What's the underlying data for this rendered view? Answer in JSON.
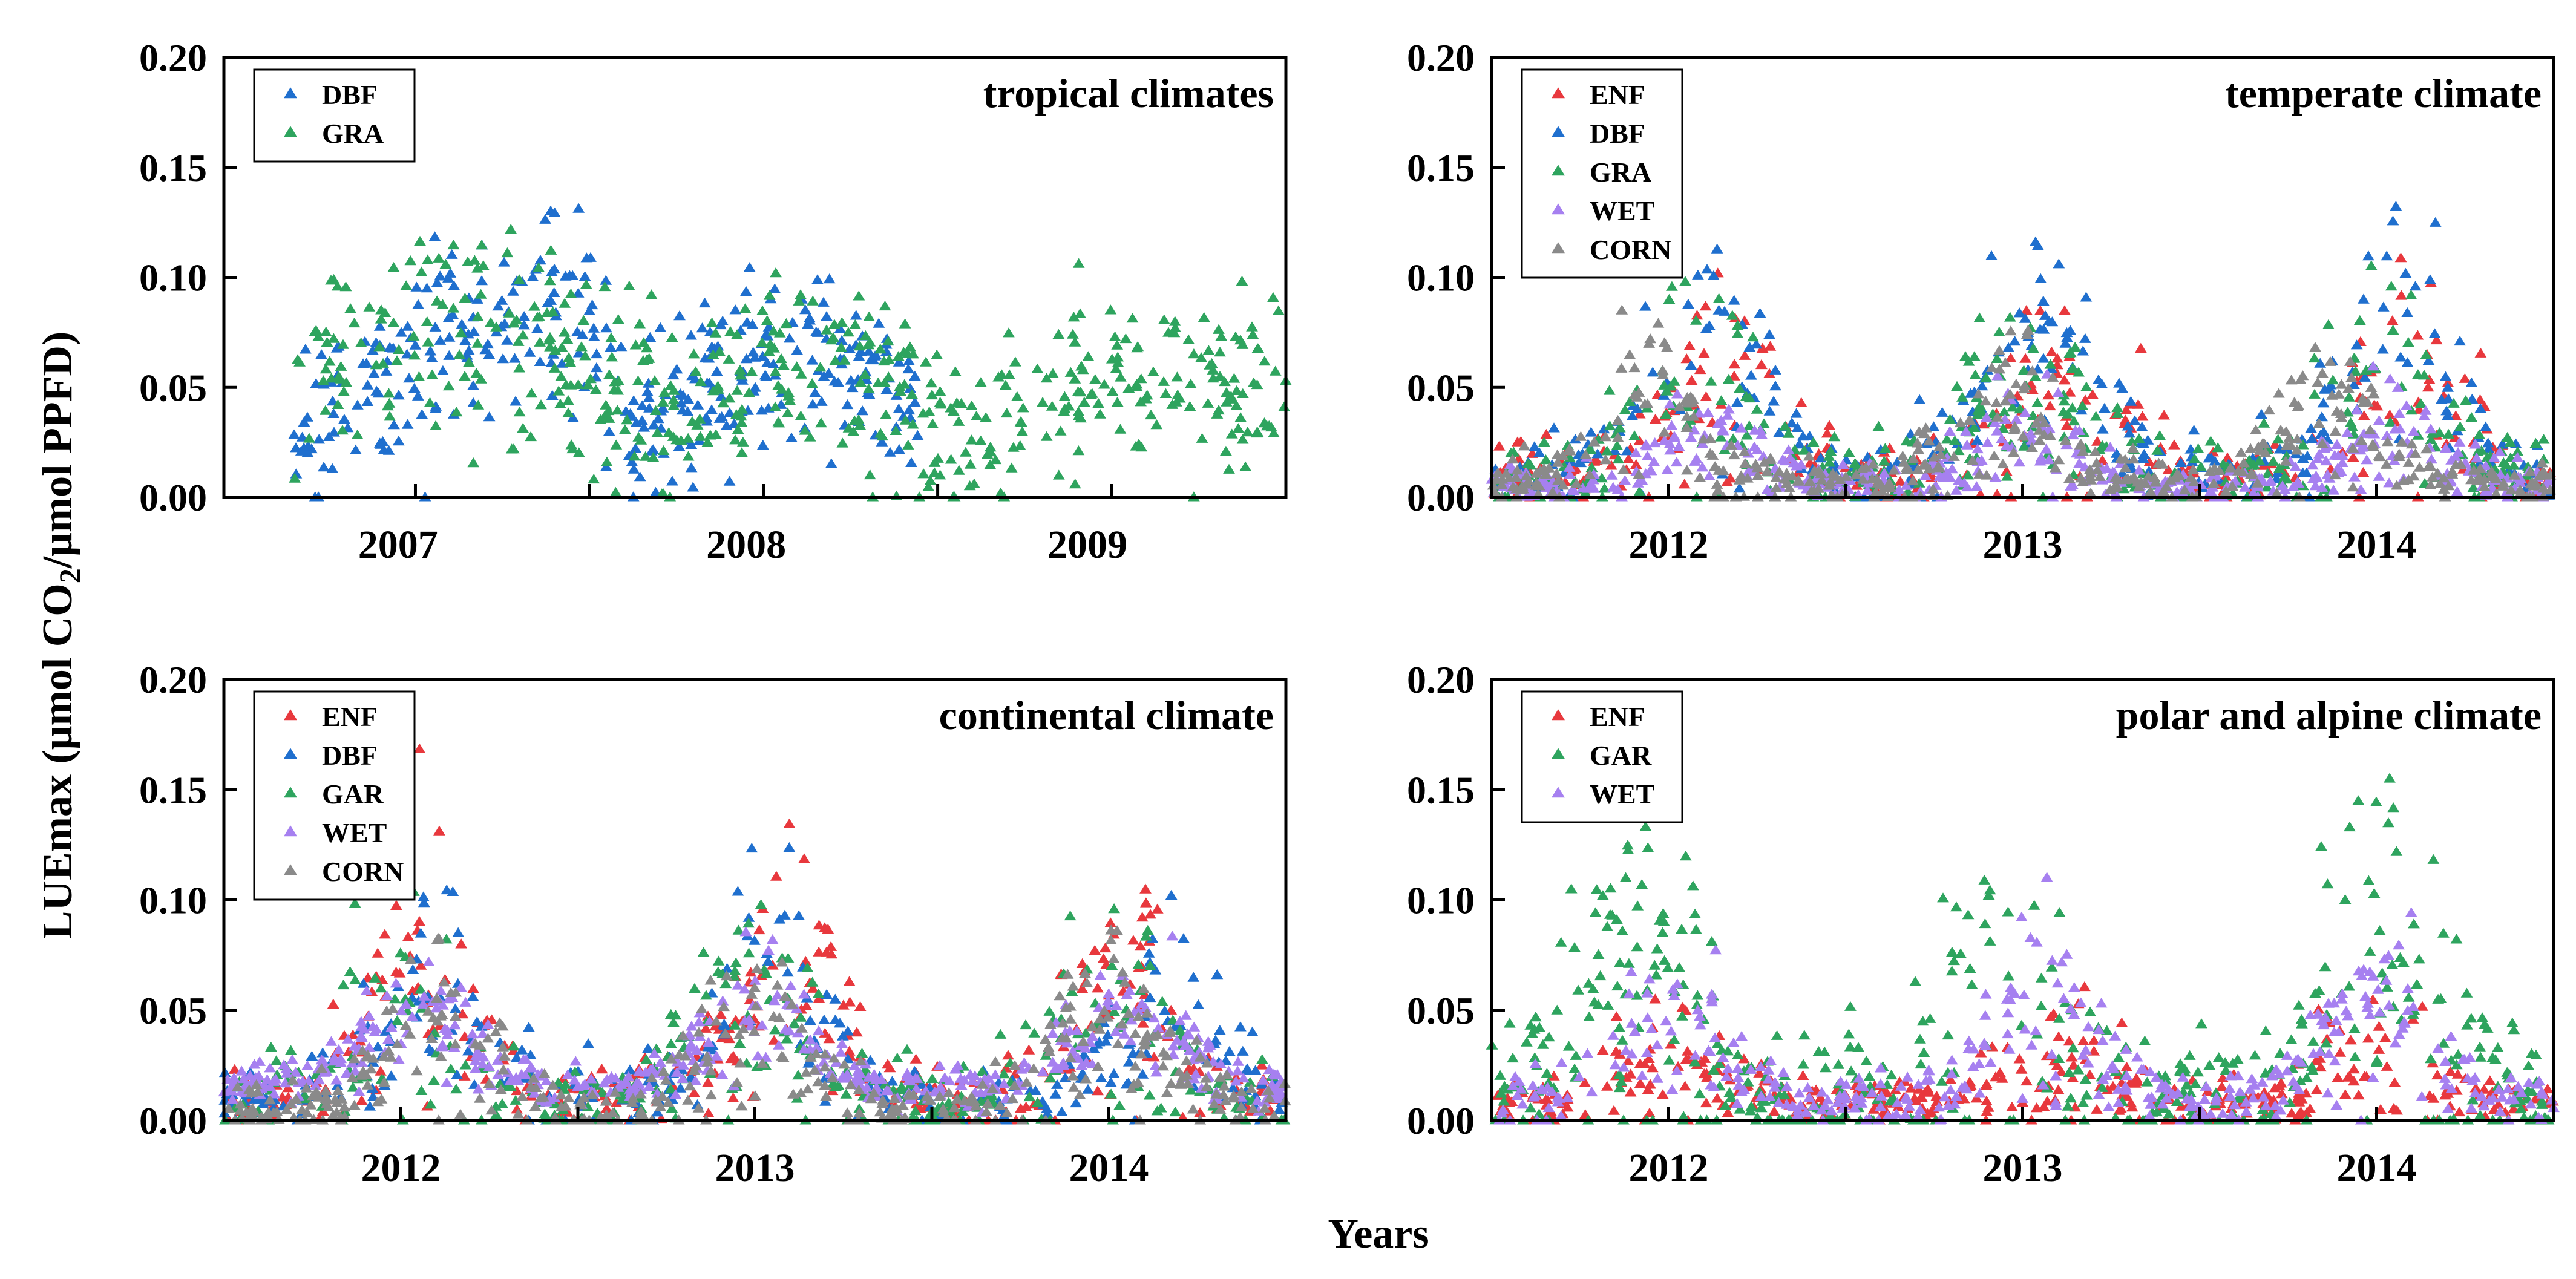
{
  "figure": {
    "ylabel_main": "LUEmax (μmol CO",
    "ylabel_sub": "2",
    "ylabel_tail": "/μmol PPFD)",
    "xlabel": "Years"
  },
  "colors": {
    "ENF": "#e8383d",
    "DBF": "#1f6fce",
    "GRA": "#2ea45e",
    "GAR": "#2ea45e",
    "WET": "#a680f0",
    "CORN": "#8a8a8a"
  },
  "chart_data": [
    {
      "type": "scatter",
      "title": "tropical climates",
      "marker": "triangle",
      "ylim": [
        0,
        0.2
      ],
      "yticks": [
        "0.00",
        "0.05",
        "0.10",
        "0.15",
        "0.20"
      ],
      "xlim": [
        2006.45,
        2009.5
      ],
      "xticks": [
        {
          "label": "2007",
          "x": 2006.95
        },
        {
          "label": "2008",
          "x": 2007.95
        },
        {
          "label": "2009",
          "x": 2008.93
        }
      ],
      "xtick_positions": [
        2007.0,
        2007.5,
        2008.0,
        2008.5,
        2009.0
      ],
      "legend": [
        "DBF",
        "GRA"
      ],
      "legend_position": "top-left",
      "series": [
        {
          "name": "DBF",
          "segments": [
            {
              "x0": 2006.65,
              "x1": 2007.6,
              "peak": 2007.3,
              "base": 0.02,
              "amp": 0.07,
              "spread": 0.022
            },
            {
              "x0": 2007.6,
              "x1": 2008.45,
              "peak": 2008.1,
              "base": 0.02,
              "amp": 0.045,
              "spread": 0.018
            }
          ],
          "n": 360
        },
        {
          "name": "GRA",
          "segments": [
            {
              "x0": 2006.65,
              "x1": 2007.7,
              "peak": 2007.1,
              "base": 0.03,
              "amp": 0.05,
              "spread": 0.025
            },
            {
              "x0": 2007.7,
              "x1": 2008.6,
              "peak": 2008.15,
              "base": 0.02,
              "amp": 0.04,
              "spread": 0.02
            },
            {
              "x0": 2008.6,
              "x1": 2009.5,
              "peak": 2009.2,
              "base": 0.02,
              "amp": 0.035,
              "spread": 0.02
            }
          ],
          "n": 520
        }
      ]
    },
    {
      "type": "scatter",
      "title": "temperate climate",
      "marker": "triangle",
      "ylim": [
        0,
        0.2
      ],
      "yticks": [
        "0.00",
        "0.05",
        "0.10",
        "0.15",
        "0.20"
      ],
      "xlim": [
        2011.5,
        2014.5
      ],
      "xticks": [
        {
          "label": "2012",
          "x": 2012.0
        },
        {
          "label": "2013",
          "x": 2013.0
        },
        {
          "label": "2014",
          "x": 2014.0
        }
      ],
      "xtick_positions": [
        2012.0,
        2012.5,
        2013.0,
        2013.5,
        2014.0
      ],
      "legend": [
        "ENF",
        "DBF",
        "GRA",
        "WET",
        "CORN"
      ],
      "legend_position": "top-left",
      "series": [
        {
          "name": "ENF",
          "peaks": [
            2012.15,
            2013.1,
            2014.1
          ],
          "base": 0.01,
          "amp": 0.045,
          "spread": 0.02,
          "n": 300
        },
        {
          "name": "DBF",
          "peaks": [
            2012.1,
            2013.05,
            2014.05
          ],
          "base": 0.01,
          "amp": 0.07,
          "spread": 0.02,
          "n": 320
        },
        {
          "name": "GRA",
          "peaks": [
            2012.05,
            2013.0,
            2014.0
          ],
          "base": 0.008,
          "amp": 0.05,
          "spread": 0.02,
          "n": 380
        },
        {
          "name": "WET",
          "peaks": [
            2012.1,
            2013.0,
            2014.05
          ],
          "base": 0.005,
          "amp": 0.025,
          "spread": 0.01,
          "n": 420
        },
        {
          "name": "CORN",
          "peaks": [
            2011.95,
            2012.95,
            2013.85
          ],
          "base": 0.006,
          "amp": 0.035,
          "spread": 0.012,
          "n": 420
        }
      ]
    },
    {
      "type": "scatter",
      "title": "continental climate",
      "marker": "triangle",
      "ylim": [
        0,
        0.2
      ],
      "yticks": [
        "0.00",
        "0.05",
        "0.10",
        "0.15",
        "0.20"
      ],
      "xlim": [
        2011.5,
        2014.5
      ],
      "xticks": [
        {
          "label": "2012",
          "x": 2012.0
        },
        {
          "label": "2013",
          "x": 2013.0
        },
        {
          "label": "2014",
          "x": 2014.0
        }
      ],
      "xtick_positions": [
        2012.0,
        2012.5,
        2013.0,
        2013.5,
        2014.0
      ],
      "legend": [
        "ENF",
        "DBF",
        "GAR",
        "WET",
        "CORN"
      ],
      "legend_position": "top-left",
      "series": [
        {
          "name": "ENF",
          "peaks": [
            2012.05,
            2013.1,
            2014.05
          ],
          "base": 0.008,
          "amp": 0.06,
          "spread": 0.02,
          "n": 340
        },
        {
          "name": "DBF",
          "peaks": [
            2012.1,
            2013.05,
            2014.15
          ],
          "base": 0.008,
          "amp": 0.055,
          "spread": 0.02,
          "n": 320
        },
        {
          "name": "GAR",
          "peaks": [
            2012.0,
            2013.0,
            2014.0
          ],
          "base": 0.008,
          "amp": 0.05,
          "spread": 0.02,
          "n": 340
        },
        {
          "name": "WET",
          "peaks": [
            2012.05,
            2013.0,
            2014.05
          ],
          "base": 0.015,
          "amp": 0.035,
          "spread": 0.01,
          "n": 460
        },
        {
          "name": "CORN",
          "peaks": [
            2012.1,
            2013.0,
            2014.0
          ],
          "base": 0.005,
          "amp": 0.04,
          "spread": 0.015,
          "n": 380
        }
      ]
    },
    {
      "type": "scatter",
      "title": "polar and alpine climate",
      "marker": "triangle",
      "ylim": [
        0,
        0.2
      ],
      "yticks": [
        "0.00",
        "0.05",
        "0.10",
        "0.15",
        "0.20"
      ],
      "xlim": [
        2011.5,
        2014.5
      ],
      "xticks": [
        {
          "label": "2012",
          "x": 2012.0
        },
        {
          "label": "2013",
          "x": 2013.0
        },
        {
          "label": "2014",
          "x": 2014.0
        }
      ],
      "xtick_positions": [
        2012.0,
        2012.5,
        2013.0,
        2013.5,
        2014.0
      ],
      "legend": [
        "ENF",
        "GAR",
        "WET"
      ],
      "legend_position": "top-left",
      "series": [
        {
          "name": "ENF",
          "peaks": [
            2012.0,
            2013.1,
            2014.0
          ],
          "base": 0.008,
          "amp": 0.02,
          "spread": 0.012,
          "n": 380
        },
        {
          "name": "GAR",
          "peaks": [
            2011.9,
            2012.95,
            2014.0
          ],
          "base": 0.01,
          "amp": 0.07,
          "spread": 0.035,
          "n": 460
        },
        {
          "name": "WET",
          "peaks": [
            2012.0,
            2013.05,
            2014.0
          ],
          "base": 0.008,
          "amp": 0.045,
          "spread": 0.015,
          "n": 380
        }
      ]
    }
  ]
}
